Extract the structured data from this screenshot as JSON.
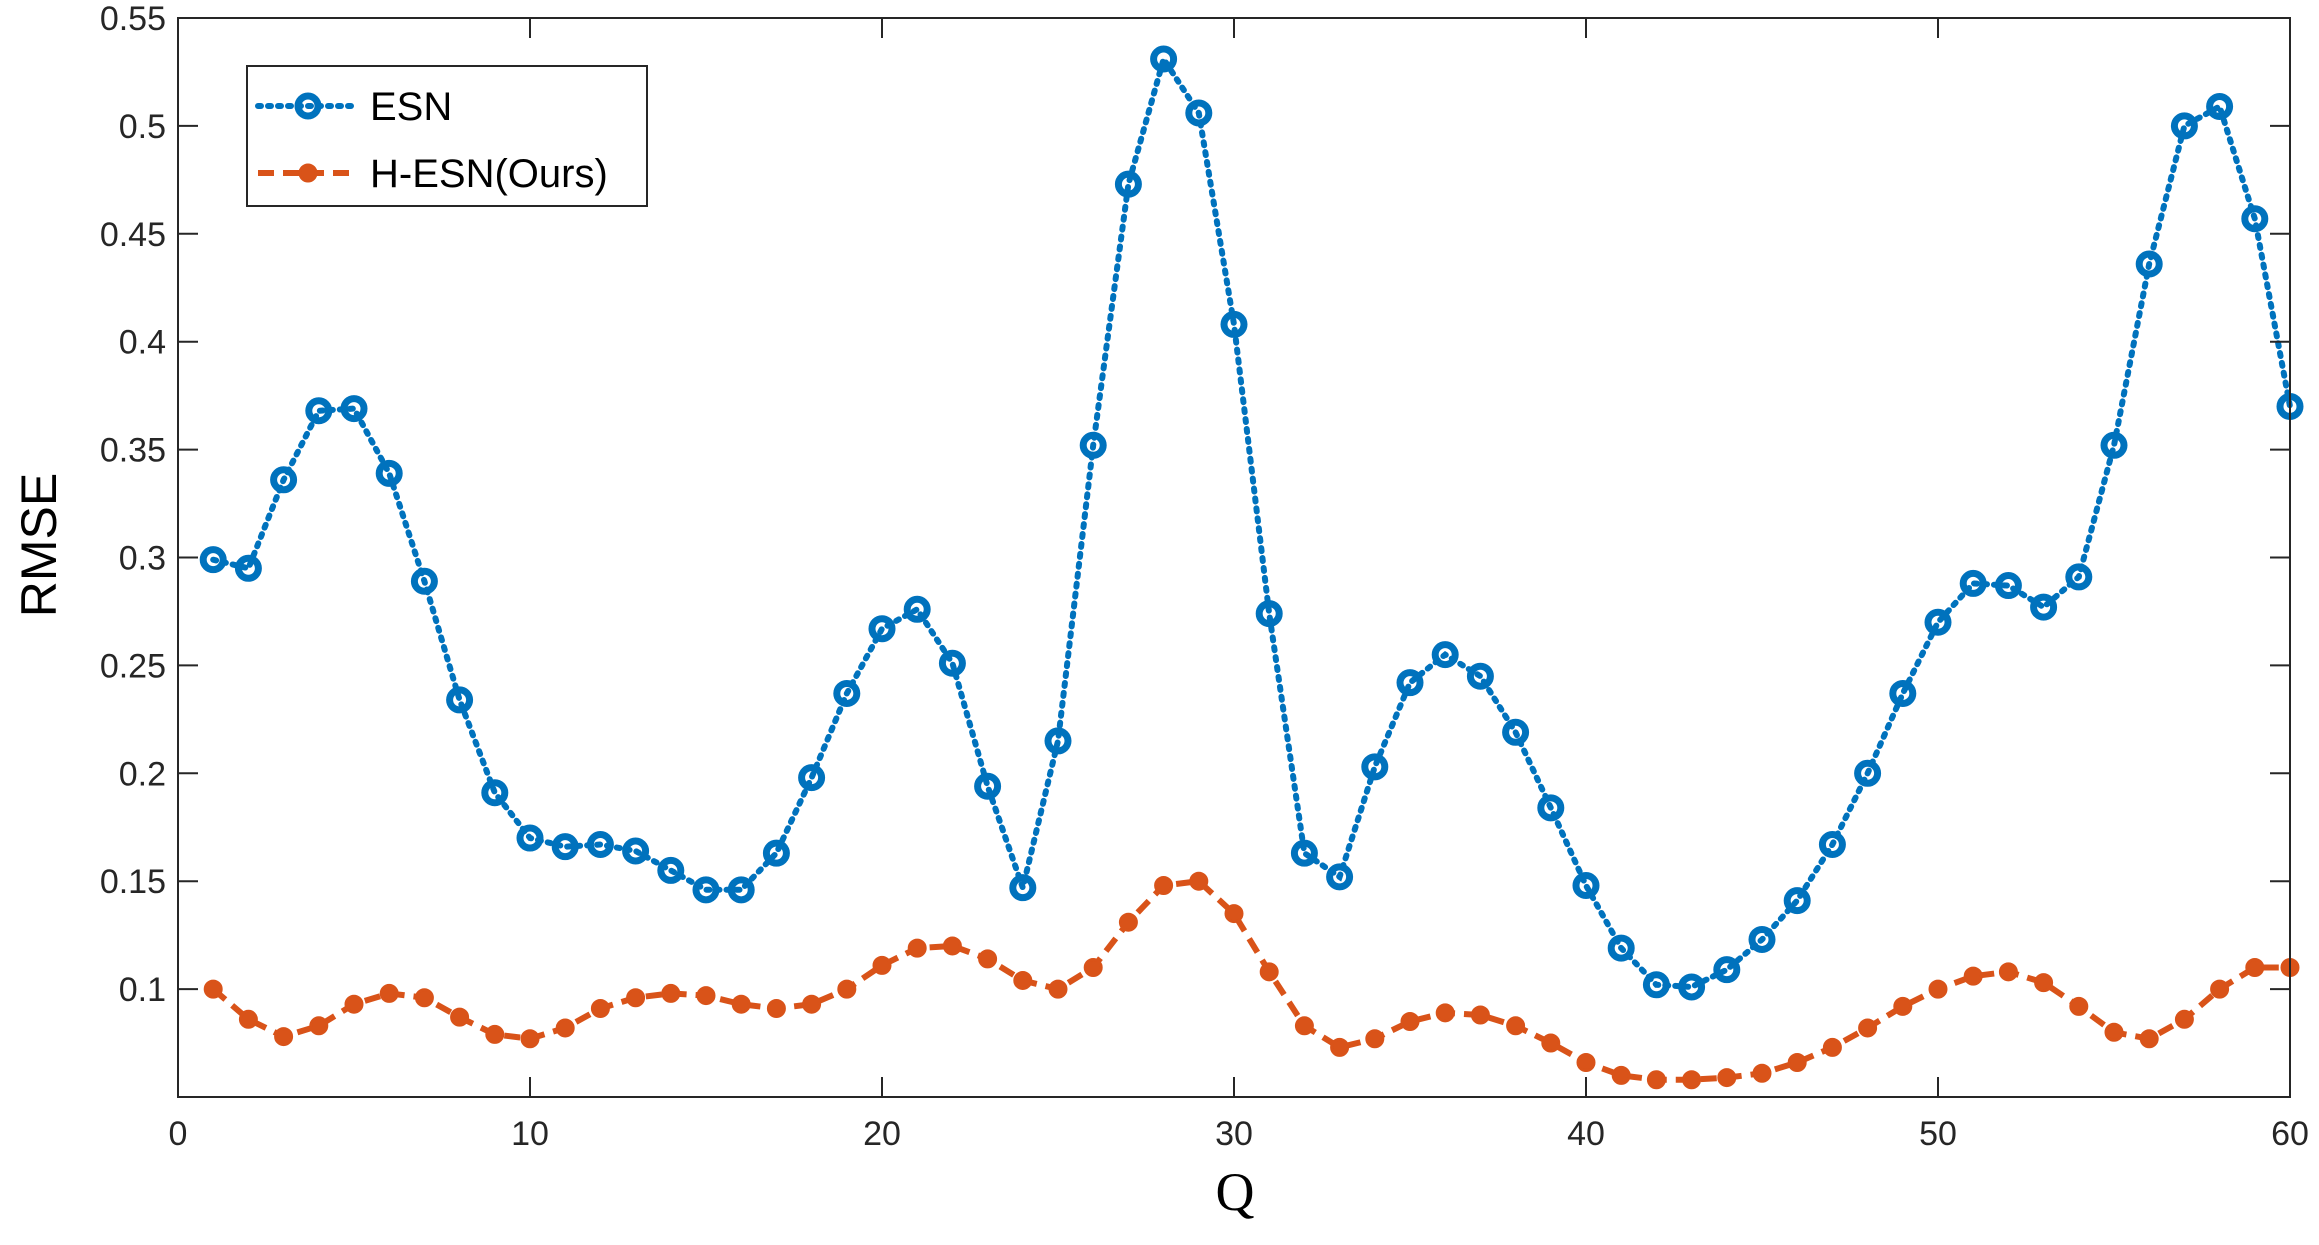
{
  "chart_data": {
    "type": "line",
    "xlabel": "Q",
    "ylabel": "RMSE",
    "xlim": [
      0,
      60
    ],
    "ylim": [
      0.05,
      0.55
    ],
    "x_ticks": [
      "0",
      "10",
      "20",
      "30",
      "40",
      "50",
      "60"
    ],
    "y_ticks": [
      "0.1",
      "0.15",
      "0.2",
      "0.25",
      "0.3",
      "0.35",
      "0.4",
      "0.45",
      "0.5",
      "0.55"
    ],
    "grid": false,
    "legend_position": "top-left",
    "x": [
      1,
      2,
      3,
      4,
      5,
      6,
      7,
      8,
      9,
      10,
      11,
      12,
      13,
      14,
      15,
      16,
      17,
      18,
      19,
      20,
      21,
      22,
      23,
      24,
      25,
      26,
      27,
      28,
      29,
      30,
      31,
      32,
      33,
      34,
      35,
      36,
      37,
      38,
      39,
      40,
      41,
      42,
      43,
      44,
      45,
      46,
      47,
      48,
      49,
      50,
      51,
      52,
      53,
      54,
      55,
      56,
      57,
      58,
      59,
      60
    ],
    "series": [
      {
        "name": "ESN",
        "color": "#0072BD",
        "line_style": "dotted",
        "marker": "circle",
        "values": [
          0.299,
          0.295,
          0.336,
          0.368,
          0.369,
          0.339,
          0.289,
          0.234,
          0.191,
          0.17,
          0.166,
          0.167,
          0.164,
          0.155,
          0.146,
          0.146,
          0.163,
          0.198,
          0.237,
          0.267,
          0.276,
          0.251,
          0.194,
          0.147,
          0.215,
          0.352,
          0.473,
          0.531,
          0.506,
          0.408,
          0.274,
          0.163,
          0.152,
          0.203,
          0.242,
          0.255,
          0.245,
          0.219,
          0.184,
          0.148,
          0.119,
          0.102,
          0.101,
          0.109,
          0.123,
          0.141,
          0.167,
          0.2,
          0.237,
          0.27,
          0.288,
          0.287,
          0.277,
          0.291,
          0.352,
          0.436,
          0.5,
          0.509,
          0.457,
          0.37
        ]
      },
      {
        "name": "H-ESN(Ours)",
        "color": "#D95319",
        "line_style": "dashed",
        "marker": "filled-circle",
        "values": [
          0.1,
          0.086,
          0.078,
          0.083,
          0.093,
          0.098,
          0.096,
          0.087,
          0.079,
          0.077,
          0.082,
          0.091,
          0.096,
          0.098,
          0.097,
          0.093,
          0.091,
          0.093,
          0.1,
          0.111,
          0.119,
          0.12,
          0.114,
          0.104,
          0.1,
          0.11,
          0.131,
          0.148,
          0.15,
          0.135,
          0.108,
          0.083,
          0.073,
          0.077,
          0.085,
          0.089,
          0.088,
          0.083,
          0.075,
          0.066,
          0.06,
          0.058,
          0.058,
          0.059,
          0.061,
          0.066,
          0.073,
          0.082,
          0.092,
          0.1,
          0.106,
          0.108,
          0.103,
          0.092,
          0.08,
          0.077,
          0.086,
          0.1,
          0.11,
          0.11
        ]
      }
    ]
  }
}
